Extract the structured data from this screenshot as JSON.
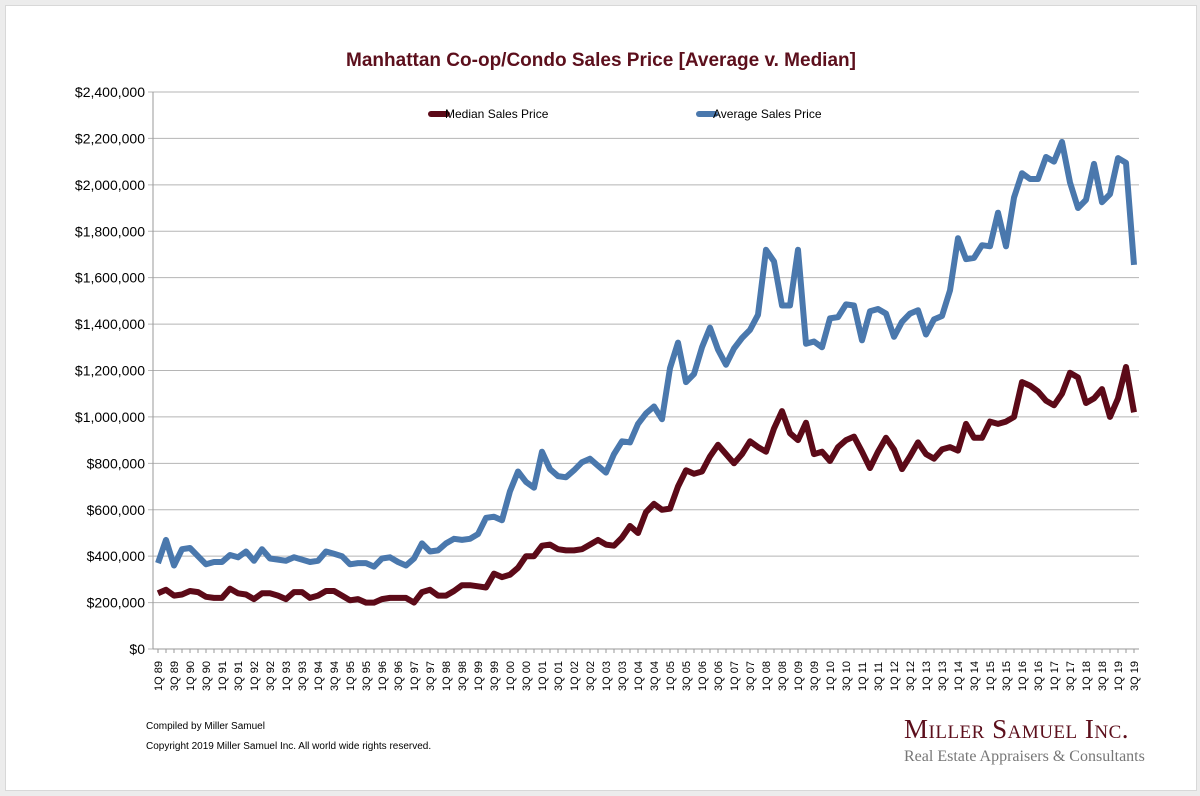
{
  "chart_data": {
    "type": "line",
    "title": "Manhattan Co-op/Condo Sales Price [Average v. Median]",
    "xlabel": "",
    "ylabel": "",
    "ylim": [
      0,
      2400000
    ],
    "yticks": [
      "$0",
      "$200,000",
      "$400,000",
      "$600,000",
      "$800,000",
      "$1,000,000",
      "$1,200,000",
      "$1,400,000",
      "$1,600,000",
      "$1,800,000",
      "$2,000,000",
      "$2,200,000",
      "$2,400,000"
    ],
    "grid": true,
    "legend_placement": "top",
    "start_quarter": "1Q 89",
    "end_quarter": "3Q 19",
    "series": [
      {
        "name": "Median Sales Price",
        "color": "#5c0a18",
        "values": [
          240000,
          255000,
          230000,
          235000,
          250000,
          245000,
          225000,
          220000,
          220000,
          260000,
          240000,
          235000,
          215000,
          240000,
          240000,
          230000,
          215000,
          245000,
          245000,
          220000,
          230000,
          250000,
          250000,
          230000,
          210000,
          215000,
          200000,
          200000,
          215000,
          220000,
          220000,
          220000,
          200000,
          245000,
          255000,
          230000,
          230000,
          250000,
          275000,
          275000,
          270000,
          265000,
          325000,
          310000,
          320000,
          350000,
          400000,
          400000,
          445000,
          450000,
          430000,
          425000,
          425000,
          430000,
          450000,
          470000,
          450000,
          445000,
          480000,
          530000,
          500000,
          590000,
          625000,
          600000,
          605000,
          700000,
          770000,
          755000,
          765000,
          830000,
          880000,
          840000,
          800000,
          840000,
          895000,
          870000,
          850000,
          950000,
          1025000,
          930000,
          900000,
          975000,
          840000,
          850000,
          810000,
          870000,
          900000,
          915000,
          850000,
          780000,
          850000,
          910000,
          860000,
          775000,
          830000,
          890000,
          840000,
          820000,
          860000,
          870000,
          855000,
          970000,
          910000,
          910000,
          980000,
          970000,
          980000,
          1000000,
          1150000,
          1135000,
          1110000,
          1070000,
          1050000,
          1100000,
          1190000,
          1170000,
          1060000,
          1080000,
          1120000,
          1000000,
          1080000,
          1215000,
          1020000
        ]
      },
      {
        "name": "Average Sales Price",
        "color": "#4a78ad",
        "values": [
          370000,
          470000,
          360000,
          430000,
          435000,
          400000,
          365000,
          375000,
          375000,
          405000,
          395000,
          420000,
          380000,
          430000,
          390000,
          385000,
          380000,
          395000,
          385000,
          375000,
          380000,
          420000,
          410000,
          400000,
          365000,
          370000,
          370000,
          355000,
          390000,
          395000,
          375000,
          360000,
          390000,
          455000,
          420000,
          425000,
          455000,
          475000,
          470000,
          475000,
          495000,
          565000,
          570000,
          555000,
          680000,
          765000,
          720000,
          695000,
          850000,
          775000,
          745000,
          740000,
          770000,
          805000,
          820000,
          790000,
          760000,
          840000,
          895000,
          890000,
          970000,
          1015000,
          1045000,
          990000,
          1210000,
          1320000,
          1150000,
          1185000,
          1300000,
          1385000,
          1290000,
          1225000,
          1295000,
          1340000,
          1375000,
          1440000,
          1720000,
          1670000,
          1480000,
          1480000,
          1720000,
          1315000,
          1325000,
          1300000,
          1425000,
          1430000,
          1485000,
          1480000,
          1330000,
          1455000,
          1465000,
          1445000,
          1345000,
          1410000,
          1445000,
          1460000,
          1355000,
          1420000,
          1435000,
          1545000,
          1770000,
          1680000,
          1685000,
          1740000,
          1735000,
          1880000,
          1735000,
          1945000,
          2050000,
          2025000,
          2025000,
          2120000,
          2100000,
          2185000,
          2010000,
          1900000,
          1935000,
          2090000,
          1925000,
          1960000,
          2115000,
          2095000,
          1655000
        ]
      }
    ]
  },
  "footer": {
    "compiled": "Compiled by Miller Samuel",
    "copyright": "Copyright 2019 Miller Samuel Inc.  All world wide rights reserved."
  },
  "logo": {
    "name": "Miller Samuel Inc.",
    "tagline": "Real Estate Appraisers & Consultants"
  }
}
